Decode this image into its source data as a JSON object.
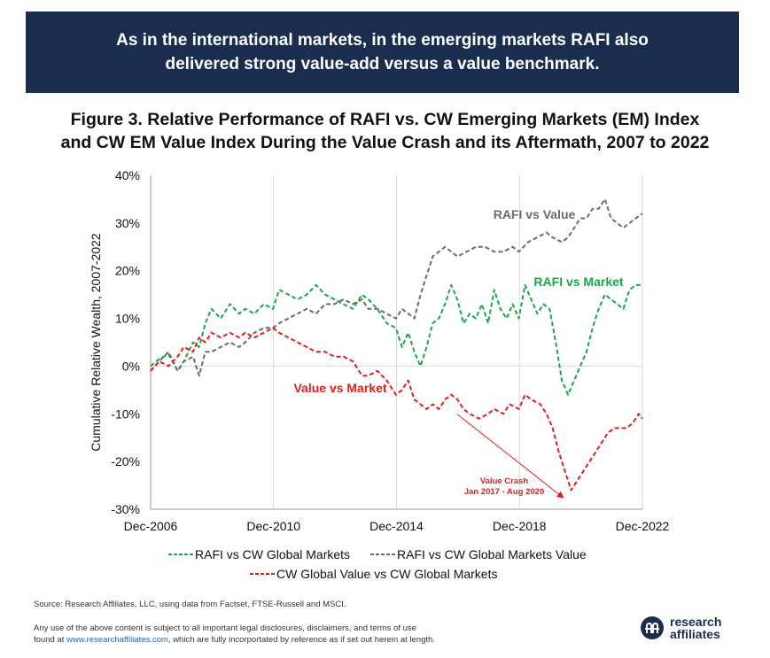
{
  "banner": {
    "line1": "As in the international markets, in the emerging markets RAFI also",
    "line2": "delivered strong value-add versus a value benchmark."
  },
  "figure_title": {
    "line1": "Figure 3. Relative Performance of RAFI vs. CW Emerging Markets (EM) Index",
    "line2": "and CW EM Value Index During the Value Crash and its Aftermath, 2007 to 2022"
  },
  "chart_data": {
    "type": "line",
    "ylabel": "Cumulative Relative Wealth, 2007-2022",
    "xlabel": "",
    "xlim": [
      2006.92,
      2022.92
    ],
    "ylim": [
      -30,
      40
    ],
    "x_ticks": [
      {
        "value": 2006.92,
        "label": "Dec-2006"
      },
      {
        "value": 2010.92,
        "label": "Dec-2010"
      },
      {
        "value": 2014.92,
        "label": "Dec-2014"
      },
      {
        "value": 2018.92,
        "label": "Dec-2018"
      },
      {
        "value": 2022.92,
        "label": "Dec-2022"
      }
    ],
    "y_ticks": [
      {
        "value": 40,
        "label": "40%"
      },
      {
        "value": 30,
        "label": "30%"
      },
      {
        "value": 20,
        "label": "20%"
      },
      {
        "value": 10,
        "label": "10%"
      },
      {
        "value": 0,
        "label": "0%"
      },
      {
        "value": -10,
        "label": "-10%"
      },
      {
        "value": -20,
        "label": "-20%"
      },
      {
        "value": -30,
        "label": "-30%"
      }
    ],
    "grid": "vertical",
    "legend_position": "bottom",
    "series": [
      {
        "name": "RAFI vs CW Global Markets",
        "label": "RAFI vs Market",
        "color": "#1aa64a",
        "points": [
          [
            2006.92,
            0
          ],
          [
            2007.2,
            1.5
          ],
          [
            2007.5,
            2.5
          ],
          [
            2007.8,
            -1
          ],
          [
            2008.0,
            1
          ],
          [
            2008.3,
            5
          ],
          [
            2008.5,
            4
          ],
          [
            2008.7,
            9
          ],
          [
            2008.9,
            12
          ],
          [
            2009.2,
            10
          ],
          [
            2009.5,
            13
          ],
          [
            2009.8,
            11
          ],
          [
            2010.0,
            12
          ],
          [
            2010.3,
            11
          ],
          [
            2010.6,
            13
          ],
          [
            2010.9,
            12
          ],
          [
            2011.1,
            16
          ],
          [
            2011.4,
            15
          ],
          [
            2011.7,
            14
          ],
          [
            2012.0,
            15
          ],
          [
            2012.3,
            17
          ],
          [
            2012.6,
            15
          ],
          [
            2012.9,
            14
          ],
          [
            2013.2,
            13
          ],
          [
            2013.5,
            12
          ],
          [
            2013.8,
            15
          ],
          [
            2014.0,
            14
          ],
          [
            2014.3,
            12
          ],
          [
            2014.6,
            9
          ],
          [
            2014.9,
            8
          ],
          [
            2015.1,
            4
          ],
          [
            2015.3,
            7
          ],
          [
            2015.5,
            3
          ],
          [
            2015.7,
            0
          ],
          [
            2015.9,
            4
          ],
          [
            2016.1,
            9
          ],
          [
            2016.3,
            10
          ],
          [
            2016.5,
            13
          ],
          [
            2016.7,
            17
          ],
          [
            2016.9,
            14
          ],
          [
            2017.1,
            9
          ],
          [
            2017.3,
            11
          ],
          [
            2017.5,
            10
          ],
          [
            2017.7,
            13
          ],
          [
            2017.9,
            9
          ],
          [
            2018.1,
            16
          ],
          [
            2018.3,
            12
          ],
          [
            2018.5,
            10
          ],
          [
            2018.7,
            13
          ],
          [
            2018.9,
            10
          ],
          [
            2019.1,
            17
          ],
          [
            2019.3,
            14
          ],
          [
            2019.5,
            11
          ],
          [
            2019.7,
            13
          ],
          [
            2019.9,
            12
          ],
          [
            2020.1,
            5
          ],
          [
            2020.3,
            -3
          ],
          [
            2020.5,
            -6
          ],
          [
            2020.7,
            -3
          ],
          [
            2020.9,
            0
          ],
          [
            2021.1,
            3
          ],
          [
            2021.3,
            8
          ],
          [
            2021.5,
            12
          ],
          [
            2021.7,
            15
          ],
          [
            2021.9,
            14
          ],
          [
            2022.1,
            13
          ],
          [
            2022.3,
            12
          ],
          [
            2022.5,
            16
          ],
          [
            2022.7,
            17
          ],
          [
            2022.92,
            17
          ]
        ]
      },
      {
        "name": "RAFI vs CW Global Markets Value",
        "label": "RAFI vs Value",
        "color": "#6b6b6b",
        "points": [
          [
            2006.92,
            -1
          ],
          [
            2007.2,
            1
          ],
          [
            2007.5,
            3
          ],
          [
            2007.8,
            -1
          ],
          [
            2008.0,
            1
          ],
          [
            2008.3,
            2
          ],
          [
            2008.5,
            -2
          ],
          [
            2008.7,
            3
          ],
          [
            2008.9,
            3
          ],
          [
            2009.2,
            4
          ],
          [
            2009.5,
            5
          ],
          [
            2009.8,
            4
          ],
          [
            2010.0,
            5
          ],
          [
            2010.3,
            7
          ],
          [
            2010.6,
            8
          ],
          [
            2010.9,
            8
          ],
          [
            2011.1,
            9
          ],
          [
            2011.4,
            10
          ],
          [
            2011.7,
            11
          ],
          [
            2012.0,
            12
          ],
          [
            2012.3,
            11
          ],
          [
            2012.6,
            13
          ],
          [
            2012.9,
            13
          ],
          [
            2013.2,
            14
          ],
          [
            2013.5,
            13
          ],
          [
            2013.8,
            14
          ],
          [
            2014.0,
            12
          ],
          [
            2014.3,
            12
          ],
          [
            2014.6,
            11
          ],
          [
            2014.9,
            10
          ],
          [
            2015.1,
            12
          ],
          [
            2015.3,
            11
          ],
          [
            2015.5,
            10
          ],
          [
            2015.7,
            15
          ],
          [
            2015.9,
            19
          ],
          [
            2016.1,
            23
          ],
          [
            2016.3,
            24
          ],
          [
            2016.5,
            25
          ],
          [
            2016.7,
            24
          ],
          [
            2016.9,
            23
          ],
          [
            2017.2,
            24
          ],
          [
            2017.5,
            25
          ],
          [
            2017.8,
            25
          ],
          [
            2018.1,
            24
          ],
          [
            2018.4,
            24
          ],
          [
            2018.7,
            25
          ],
          [
            2018.9,
            24
          ],
          [
            2019.2,
            26
          ],
          [
            2019.5,
            27
          ],
          [
            2019.8,
            28
          ],
          [
            2020.0,
            27
          ],
          [
            2020.3,
            26
          ],
          [
            2020.5,
            27
          ],
          [
            2020.7,
            29
          ],
          [
            2020.9,
            31
          ],
          [
            2021.1,
            31
          ],
          [
            2021.3,
            33
          ],
          [
            2021.5,
            33
          ],
          [
            2021.7,
            35
          ],
          [
            2021.9,
            31
          ],
          [
            2022.1,
            30
          ],
          [
            2022.3,
            29
          ],
          [
            2022.5,
            30
          ],
          [
            2022.7,
            31
          ],
          [
            2022.92,
            32
          ]
        ]
      },
      {
        "name": "CW Global Value vs CW Global Markets",
        "label": "Value vs Market",
        "color": "#e01e1e",
        "points": [
          [
            2006.92,
            -1
          ],
          [
            2007.2,
            1
          ],
          [
            2007.5,
            0
          ],
          [
            2007.8,
            2
          ],
          [
            2008.0,
            4
          ],
          [
            2008.3,
            3
          ],
          [
            2008.5,
            6
          ],
          [
            2008.7,
            5
          ],
          [
            2008.9,
            7
          ],
          [
            2009.2,
            6
          ],
          [
            2009.5,
            7
          ],
          [
            2009.8,
            6
          ],
          [
            2010.0,
            7
          ],
          [
            2010.3,
            6
          ],
          [
            2010.6,
            7
          ],
          [
            2010.9,
            8
          ],
          [
            2011.1,
            7
          ],
          [
            2011.4,
            6
          ],
          [
            2011.7,
            5
          ],
          [
            2012.0,
            4
          ],
          [
            2012.3,
            3
          ],
          [
            2012.6,
            3
          ],
          [
            2012.9,
            2
          ],
          [
            2013.2,
            2
          ],
          [
            2013.5,
            1
          ],
          [
            2013.8,
            -2
          ],
          [
            2014.0,
            -2
          ],
          [
            2014.3,
            -1
          ],
          [
            2014.6,
            -3
          ],
          [
            2014.9,
            -6
          ],
          [
            2015.1,
            -5
          ],
          [
            2015.3,
            -3
          ],
          [
            2015.5,
            -7
          ],
          [
            2015.7,
            -8
          ],
          [
            2015.9,
            -9
          ],
          [
            2016.1,
            -8
          ],
          [
            2016.3,
            -9
          ],
          [
            2016.5,
            -7
          ],
          [
            2016.7,
            -6
          ],
          [
            2016.9,
            -7
          ],
          [
            2017.1,
            -9
          ],
          [
            2017.3,
            -10
          ],
          [
            2017.6,
            -11
          ],
          [
            2017.9,
            -10
          ],
          [
            2018.1,
            -9
          ],
          [
            2018.4,
            -10
          ],
          [
            2018.6,
            -8
          ],
          [
            2018.9,
            -9
          ],
          [
            2019.1,
            -6
          ],
          [
            2019.3,
            -7
          ],
          [
            2019.6,
            -8
          ],
          [
            2019.8,
            -10
          ],
          [
            2020.0,
            -13
          ],
          [
            2020.2,
            -18
          ],
          [
            2020.4,
            -22
          ],
          [
            2020.6,
            -26
          ],
          [
            2020.8,
            -24
          ],
          [
            2021.0,
            -22
          ],
          [
            2021.2,
            -20
          ],
          [
            2021.4,
            -18
          ],
          [
            2021.6,
            -16
          ],
          [
            2021.8,
            -14
          ],
          [
            2022.0,
            -13
          ],
          [
            2022.2,
            -13
          ],
          [
            2022.4,
            -13
          ],
          [
            2022.6,
            -12
          ],
          [
            2022.8,
            -10
          ],
          [
            2022.92,
            -11
          ]
        ]
      }
    ],
    "annotation": {
      "line1": "Value Crash",
      "line2": "Jan 2017 - Aug 2020",
      "color": "#e01e1e",
      "arrow_from": [
        2016.9,
        -9
      ],
      "arrow_to": [
        2020.5,
        -26
      ],
      "text_at": [
        2019.0,
        -24
      ]
    }
  },
  "footer": {
    "source": "Source: Research Affiliates, LLC, using data from Factset, FTSE-Russell and MSCI.",
    "disclaimer_line1": "Any use of the above content is subject to all important legal disclosures, disclaimers, and terms of use",
    "disclaimer_pre": "found at ",
    "disclaimer_link": "www.researchaffiliates.com",
    "disclaimer_post": ", which are fully incorportated by reference as if set out herein at length."
  },
  "logo": {
    "line1": "research",
    "line2": "affiliates"
  }
}
